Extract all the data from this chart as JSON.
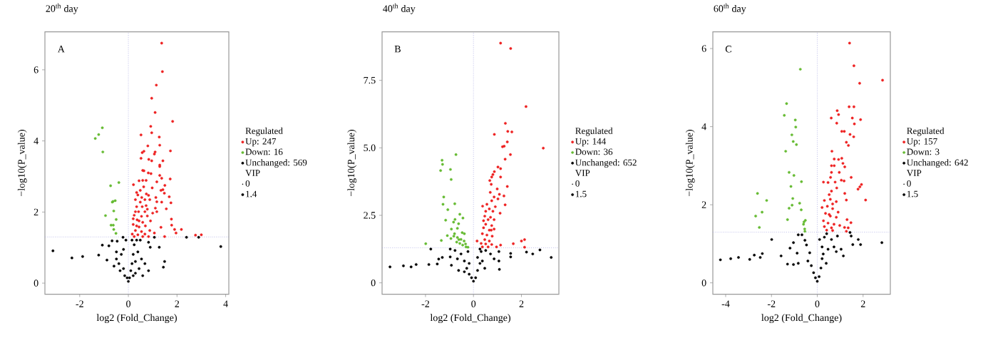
{
  "chart_data": [
    {
      "type": "scatter",
      "title": "20$^{th}$ day",
      "xlabel": "log2 (Fold_Change)",
      "ylabel": "−log10(P_value)",
      "legend_title": "Regulated",
      "legend": "right",
      "grid": false,
      "annotations": [
        "A",
        "VIP",
        "0",
        "1.4"
      ],
      "xlim": [
        -3.43,
        4.13
      ],
      "ylim": [
        -0.31,
        7.07
      ],
      "xticks": [
        -2,
        0,
        2,
        4
      ],
      "yticks": [
        0,
        2,
        4,
        6
      ],
      "ref_lines": [
        {
          "axis": "x",
          "value": 0,
          "color": "#9999dd",
          "line_style": "dotted"
        },
        {
          "axis": "y",
          "value": 1.3,
          "color": "#9999dd",
          "line_style": "dotted"
        }
      ],
      "series": [
        {
          "name": "Up: 247",
          "color": "#ee2222",
          "x": [
            1.37,
            1.4,
            1.15,
            0.96,
            1.1,
            1.82,
            0.92,
            0.96,
            0.52,
            1.27,
            1.29,
            0.8,
            1.73,
            0.64,
            1.1,
            1.07,
            0.57,
            1.42,
            0.52,
            0.96,
            0.84,
            1.29,
            1.29,
            0.59,
            0.64,
            0.82,
            0.93,
            1.29,
            1.37,
            1.72,
            0.44,
            0.59,
            0.73,
            0.21,
            1.5,
            1.17,
            0.98,
            1.42,
            1.34,
            1.48,
            1.68,
            0.74,
            0.39,
            0.55,
            0.83,
            1.17,
            1.37,
            1.75,
            1.13,
            0.88,
            0.29,
            0.57,
            0.34,
            0.73,
            1.11,
            1.56,
            0.42,
            0.68,
            1.0,
            1.17,
            0.24,
            0.54,
            0.78,
            1.77,
            0.36,
            0.59,
            0.91,
            1.78,
            0.2,
            0.44,
            0.7,
            1.34,
            1.9,
            2.18,
            1.96,
            0.29,
            0.54,
            0.88,
            0.16,
            0.39,
            0.68,
            1.07,
            2.76,
            3.0,
            1.49,
            0.24,
            0.59,
            0.83,
            0.34,
            0.49,
            0.63,
            0.29,
            0.49,
            0.68,
            0.2,
            0.78,
            0.44,
            0.34
          ],
          "values": [
            6.75,
            5.95,
            5.57,
            5.2,
            4.8,
            4.55,
            4.41,
            4.23,
            4.17,
            4.11,
            3.88,
            3.86,
            3.72,
            3.71,
            3.69,
            3.63,
            3.67,
            3.44,
            3.51,
            3.44,
            3.48,
            3.32,
            3.28,
            3.17,
            3.16,
            3.1,
            3.08,
            3.03,
            2.95,
            2.93,
            2.88,
            2.89,
            2.89,
            2.77,
            2.75,
            2.85,
            2.68,
            2.63,
            2.61,
            2.53,
            2.43,
            2.51,
            2.48,
            2.41,
            2.47,
            2.29,
            2.28,
            2.26,
            2.41,
            2.35,
            2.35,
            2.15,
            2.15,
            2.18,
            2.11,
            2.09,
            2.01,
            2.01,
            1.97,
            2.01,
            1.91,
            1.88,
            1.89,
            1.8,
            1.78,
            1.71,
            1.75,
            1.63,
            1.65,
            1.58,
            1.61,
            1.57,
            1.51,
            1.51,
            1.41,
            1.48,
            1.45,
            1.48,
            1.38,
            1.36,
            1.38,
            1.41,
            1.35,
            1.36,
            1.31,
            1.31,
            1.31,
            1.31,
            2.55,
            2.61,
            2.71,
            2.01,
            2.28,
            2.35,
            1.81,
            2.08,
            1.75,
            1.61
          ]
        },
        {
          "name": "Down: 16",
          "color": "#66bb33",
          "x": [
            -1.07,
            -1.22,
            -1.36,
            -1.05,
            -0.39,
            -0.73,
            -0.63,
            -0.54,
            -0.6,
            -0.94,
            -0.5,
            -0.71,
            -0.62,
            -0.6,
            -0.51,
            -0.66
          ],
          "values": [
            4.37,
            4.18,
            4.07,
            3.69,
            2.83,
            2.74,
            2.3,
            2.32,
            2.03,
            1.9,
            1.79,
            1.63,
            1.63,
            1.51,
            1.4,
            2.28
          ]
        },
        {
          "name": "Unchanged: 569",
          "color": "#000000",
          "x": [
            -3.1,
            -2.32,
            -1.88,
            -1.22,
            -1.07,
            -0.8,
            -0.88,
            -0.67,
            -0.46,
            -0.22,
            2.39,
            2.89,
            3.8,
            1.07,
            1.27,
            0.83,
            0.9,
            1.49,
            1.44,
            0.59,
            0.83,
            0.68,
            0,
            0.05,
            -0.05,
            0.1,
            -0.15,
            0.15,
            -0.2,
            0.2,
            -0.39,
            0.24,
            -0.49,
            0.34,
            -0.29,
            0.39,
            0.49,
            -0.2,
            0.54,
            -0.34,
            0.29,
            -0.1,
            0.15,
            0.44,
            -0.59,
            -0.49,
            0.29,
            0.2
          ],
          "values": [
            0.91,
            0.71,
            0.75,
            0.79,
            1.07,
            1.05,
            0.65,
            1.19,
            1.18,
            1.29,
            1.29,
            1.29,
            1.03,
            1.29,
            1.01,
            1.15,
            1.01,
            0.61,
            0.45,
            0.21,
            0.35,
            0.55,
            0.05,
            0.15,
            0.15,
            0.35,
            0.21,
            0.55,
            0.41,
            0.81,
            0.55,
            1.08,
            0.68,
            1.21,
            0.81,
            0.88,
            1.21,
            0.95,
            0.68,
            0.35,
            0.28,
            1.21,
            1.21,
            0.41,
            0.48,
            0.88,
            0.61,
            0.21
          ]
        }
      ]
    },
    {
      "type": "scatter",
      "title": "40$^{th}$ day",
      "xlabel": "log2 (Fold_Change)",
      "ylabel": "−log10(P_value)",
      "legend_title": "Regulated",
      "legend": "right",
      "grid": false,
      "annotations": [
        "B",
        "VIP",
        "0",
        "1.5"
      ],
      "xlim": [
        -3.81,
        3.56
      ],
      "ylim": [
        -0.42,
        9.3
      ],
      "xticks": [
        -2,
        0,
        2
      ],
      "yticks": [
        0,
        {
          "value": 2.5,
          "label": "2.5"
        },
        {
          "value": 5,
          "label": "5.0"
        },
        {
          "value": 7.5,
          "label": "7.5"
        }
      ],
      "ref_lines": [
        {
          "axis": "x",
          "value": 0,
          "color": "#9999dd",
          "line_style": "dotted"
        },
        {
          "axis": "y",
          "value": 1.3,
          "color": "#9999dd",
          "line_style": "dotted"
        }
      ],
      "series": [
        {
          "name": "Up: 144",
          "color": "#ee2222",
          "x": [
            1.13,
            1.55,
            2.19,
            1.33,
            0.87,
            1.43,
            1.6,
            1.41,
            1.28,
            2.91,
            1.21,
            1.54,
            1.32,
            1.02,
            1.13,
            0.87,
            0.81,
            0.76,
            1.13,
            0.68,
            0.74,
            1.41,
            0.99,
            0.7,
            1.08,
            1.27,
            0.86,
            0.76,
            1.02,
            0.56,
            1.32,
            0.38,
            0.91,
            0.66,
            0.81,
            1.11,
            0.47,
            0.71,
            0.86,
            0.51,
            0.76,
            0.42,
            0.66,
            0.86,
            0.37,
            0.56,
            0.78,
            0.47,
            0.66,
            0.15,
            0.32,
            0.51,
            0.76,
            2.0,
            2.13,
            1.66,
            2.13,
            0.96,
            1.13,
            0.37,
            0.61,
            0.42,
            0.61,
            0.51,
            0.74
          ],
          "values": [
            8.88,
            8.68,
            6.53,
            5.91,
            5.5,
            5.61,
            5.59,
            5.22,
            5.06,
            4.99,
            5.04,
            4.75,
            4.58,
            4.29,
            4.23,
            4.12,
            4.01,
            3.92,
            3.92,
            3.79,
            3.65,
            3.57,
            3.48,
            3.35,
            3.28,
            3.22,
            3.18,
            3.04,
            3.11,
            2.91,
            2.89,
            2.84,
            2.82,
            2.74,
            2.65,
            2.58,
            2.47,
            2.43,
            2.34,
            2.17,
            2.12,
            2.04,
            1.95,
            1.99,
            1.82,
            1.77,
            1.73,
            1.6,
            1.55,
            1.55,
            1.46,
            1.44,
            1.42,
            1.55,
            1.6,
            1.45,
            1.32,
            1.33,
            1.4,
            1.33,
            1.33,
            2.3,
            2.34,
            2.65,
            1.95
          ]
        },
        {
          "name": "Down: 36",
          "color": "#66bb33",
          "x": [
            -0.73,
            -1.31,
            -1.29,
            -0.96,
            -1.37,
            -0.93,
            -1.24,
            -1.27,
            -0.78,
            -1.07,
            -0.57,
            -0.44,
            -1.16,
            -0.77,
            -0.83,
            -0.62,
            -0.67,
            -1.09,
            -0.79,
            -0.47,
            -0.38,
            -0.94,
            -0.82,
            -1.34,
            -0.61,
            -0.52,
            -0.39,
            -0.7,
            -1.99,
            -0.33,
            -0.45,
            -0.31,
            -0.23,
            -0.57,
            -0.92,
            -0.67
          ],
          "values": [
            4.75,
            4.54,
            4.39,
            4.2,
            4.16,
            3.83,
            3.18,
            2.91,
            2.93,
            2.71,
            2.54,
            2.4,
            2.32,
            2.35,
            2.25,
            2.19,
            2.02,
            1.75,
            1.82,
            1.86,
            1.82,
            1.64,
            1.73,
            1.57,
            1.6,
            1.61,
            1.55,
            1.51,
            1.45,
            1.44,
            1.4,
            1.33,
            1.32,
            1.46,
            1.99,
            1.68
          ]
        },
        {
          "name": "Unchanged: 652",
          "color": "#000000",
          "x": [
            -3.48,
            -2.92,
            -2.6,
            -2.39,
            -1.86,
            -1.78,
            -1.51,
            -1.45,
            -1.3,
            -0.97,
            -0.97,
            -0.92,
            -0.77,
            -0.67,
            -0.52,
            -0.38,
            -0.28,
            -0.18,
            0,
            -0.08,
            0.09,
            0.17,
            0.27,
            0.17,
            0.32,
            0.51,
            0.71,
            0.86,
            1.06,
            1.08,
            1.06,
            1.55,
            1.55,
            2.21,
            2.47,
            2.77,
            3.24,
            0.47,
            -0.38,
            -0.62,
            -0.23,
            0.27,
            -0.18,
            0.37
          ],
          "values": [
            0.59,
            0.63,
            0.59,
            0.68,
            0.68,
            1.25,
            0.7,
            0.88,
            0.94,
            1.25,
            0.96,
            0.65,
            1.2,
            0.89,
            1.07,
            0.81,
            0.54,
            0.32,
            0.06,
            0.19,
            0.19,
            0.46,
            0.72,
            0.94,
            1.16,
            1.2,
            1.07,
            0.89,
            1.16,
            0.5,
            0.81,
            1.09,
            0.96,
            1.14,
            1.07,
            1.22,
            0.94,
            0.54,
            0.41,
            0.46,
            1.16,
            1.25,
            0.72,
            0.81
          ]
        }
      ]
    },
    {
      "type": "scatter",
      "title": "60$^{th}$ day",
      "xlabel": "log2 (Fold_Change)",
      "ylabel": "−log10(P_value)",
      "legend_title": "Regulated",
      "legend": "right",
      "grid": false,
      "annotations": [
        "C",
        "VIP",
        "0",
        "1.5"
      ],
      "xlim": [
        -4.56,
        3.19
      ],
      "ylim": [
        -0.29,
        6.43
      ],
      "xticks": [
        -4,
        -2,
        0,
        2
      ],
      "yticks": [
        0,
        2,
        4,
        6
      ],
      "ref_lines": [
        {
          "axis": "x",
          "value": 0,
          "color": "#9999dd",
          "line_style": "dotted"
        },
        {
          "axis": "y",
          "value": 1.3,
          "color": "#9999dd",
          "line_style": "dotted"
        }
      ],
      "series": [
        {
          "name": "Up: 157",
          "color": "#ee2222",
          "x": [
            1.41,
            1.6,
            2.85,
            1.85,
            1.39,
            1.6,
            0.87,
            0.93,
            0.61,
            1.53,
            1.89,
            0.85,
            1.62,
            1.07,
            1.18,
            1.43,
            1.59,
            1.27,
            1.36,
            0.64,
            0.74,
            0.93,
            1.07,
            0.62,
            0.74,
            1.12,
            1.2,
            0.62,
            0.96,
            0.58,
            1.48,
            0.27,
            0.47,
            0.78,
            1.05,
            1.17,
            1.86,
            1.93,
            1.78,
            0.85,
            0.62,
            0.52,
            1.2,
            2.11,
            1.27,
            0.31,
            0.57,
            0.83,
            0.21,
            0.44,
            0.67,
            0.91,
            0.36,
            0.57,
            0.83,
            1.3,
            0.27,
            0.47,
            0.73,
            1.47,
            0.98,
            0.31,
            0.62,
            1.19,
            1.35,
            0.41,
            0.67,
            1.27,
            0.52,
            0.67
          ],
          "values": [
            6.14,
            5.56,
            5.19,
            5.11,
            4.51,
            4.51,
            4.41,
            4.31,
            4.22,
            4.22,
            4.18,
            4.09,
            4.07,
            3.88,
            3.88,
            3.8,
            3.74,
            3.6,
            3.52,
            3.37,
            3.17,
            3.16,
            3.19,
            3.0,
            3.0,
            3.06,
            2.97,
            2.83,
            2.83,
            2.7,
            2.7,
            2.58,
            2.57,
            2.58,
            2.63,
            2.61,
            2.46,
            2.52,
            2.4,
            2.43,
            2.35,
            2.26,
            2.29,
            2.12,
            2.12,
            2.11,
            2.14,
            2.08,
            1.93,
            1.96,
            1.9,
            1.81,
            1.78,
            1.71,
            1.68,
            1.62,
            1.59,
            1.53,
            1.5,
            1.54,
            1.47,
            1.44,
            1.41,
            1.42,
            1.41,
            1.35,
            1.34,
            1.32,
            1.75,
            2.02
          ]
        },
        {
          "name": "Down: 3",
          "color": "#66bb33",
          "x": [
            -0.74,
            -1.34,
            -1.44,
            -0.96,
            -0.94,
            -1.11,
            -1.05,
            -0.91,
            -1.38,
            -1.23,
            -1.02,
            -0.69,
            -1.15,
            -2.61,
            -2.21,
            -1.07,
            -0.77,
            -1.1,
            -1.23,
            -0.7,
            -2.41,
            -2.69,
            -1.3,
            -0.52,
            -0.58,
            -0.6,
            -2.53,
            -0.55,
            -0.54
          ],
          "values": [
            5.47,
            4.59,
            4.29,
            4.17,
            3.99,
            3.79,
            3.62,
            3.54,
            3.37,
            2.83,
            2.75,
            2.59,
            2.47,
            2.29,
            2.11,
            2.16,
            2.04,
            1.99,
            1.91,
            1.87,
            1.81,
            1.71,
            1.62,
            1.6,
            1.56,
            1.5,
            1.42,
            1.38,
            1.32
          ]
        },
        {
          "name": "Unchanged: 642",
          "color": "#000000",
          "x": [
            -4.23,
            -3.78,
            -3.44,
            -2.95,
            -2.75,
            -2.49,
            -2.4,
            -1.99,
            -1.58,
            -1.3,
            -1.04,
            -0.83,
            -1.19,
            -1.04,
            -0.88,
            -0.83,
            -0.67,
            -0.54,
            -0.47,
            -0.33,
            -0.41,
            -0.26,
            -0.16,
            0,
            0.08,
            0.16,
            0.21,
            0.21,
            0.31,
            0.41,
            0.47,
            0.62,
            0.73,
            0.83,
            1.04,
            1.14,
            0.88,
            1.43,
            1.48,
            1.55,
            1.79,
            1.89,
            2.82,
            0.39,
            -0.08,
            0.1,
            0.26
          ],
          "values": [
            0.59,
            0.62,
            0.65,
            0.6,
            0.71,
            0.65,
            0.75,
            1.11,
            0.69,
            0.48,
            0.47,
            0.5,
            0.89,
            1.03,
            0.76,
            1.23,
            1.23,
            1.09,
            0.97,
            0.77,
            0.56,
            0.44,
            0.26,
            0.04,
            0.16,
            0.38,
            0.62,
            0.92,
            1.17,
            1.26,
            0.86,
            1.11,
            0.92,
            0.8,
            0.86,
            0.69,
            1.2,
            1.29,
            1.2,
            0.98,
            1.11,
            0.98,
            1.03,
            0.5,
            0.13,
            1.11,
            0.74
          ]
        }
      ]
    }
  ]
}
